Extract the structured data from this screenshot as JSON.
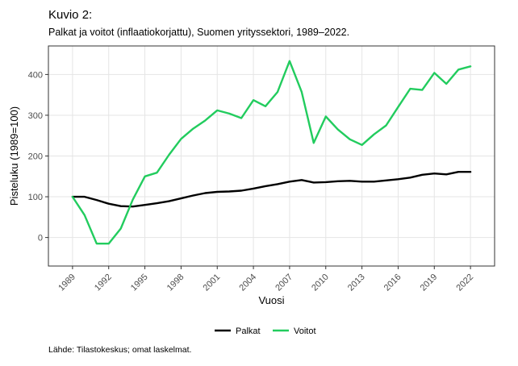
{
  "title": "Kuvio 2:",
  "subtitle": "Palkat ja voitot (inflaatiokorjattu), Suomen yrityssektori, 1989–2022.",
  "caption": "Lähde: Tilastokeskus; omat laskelmat.",
  "colors": {
    "palkat": "#000000",
    "voitot": "#22cc5e",
    "grid": "#e5e5e5",
    "panel_border": "#333333"
  },
  "chart_data": {
    "type": "line",
    "title": "",
    "xlabel": "Vuosi",
    "ylabel": "Pisteluku (1989=100)",
    "xlim": [
      1987,
      2024
    ],
    "ylim": [
      -70,
      470
    ],
    "xticks": [
      1989,
      1992,
      1995,
      1998,
      2001,
      2004,
      2007,
      2010,
      2013,
      2016,
      2019,
      2022
    ],
    "yticks": [
      0,
      100,
      200,
      300,
      400
    ],
    "grid": true,
    "legend_position": "bottom",
    "x": [
      1989,
      1990,
      1991,
      1992,
      1993,
      1994,
      1995,
      1996,
      1997,
      1998,
      1999,
      2000,
      2001,
      2002,
      2003,
      2004,
      2005,
      2006,
      2007,
      2008,
      2009,
      2010,
      2011,
      2012,
      2013,
      2014,
      2015,
      2016,
      2017,
      2018,
      2019,
      2020,
      2021,
      2022
    ],
    "series": [
      {
        "name": "Palkat",
        "color": "#000000",
        "values": [
          100,
          100,
          92,
          83,
          77,
          76,
          80,
          84,
          89,
          96,
          103,
          109,
          112,
          113,
          115,
          120,
          126,
          131,
          137,
          141,
          135,
          136,
          138,
          139,
          137,
          137,
          140,
          143,
          147,
          154,
          157,
          155,
          161,
          161
        ]
      },
      {
        "name": "Voitot",
        "color": "#22cc5e",
        "values": [
          100,
          55,
          -15,
          -15,
          22,
          93,
          150,
          159,
          203,
          242,
          267,
          287,
          312,
          304,
          293,
          337,
          322,
          357,
          433,
          357,
          232,
          297,
          265,
          241,
          227,
          253,
          275,
          320,
          365,
          362,
          404,
          377,
          412,
          420
        ]
      }
    ]
  }
}
